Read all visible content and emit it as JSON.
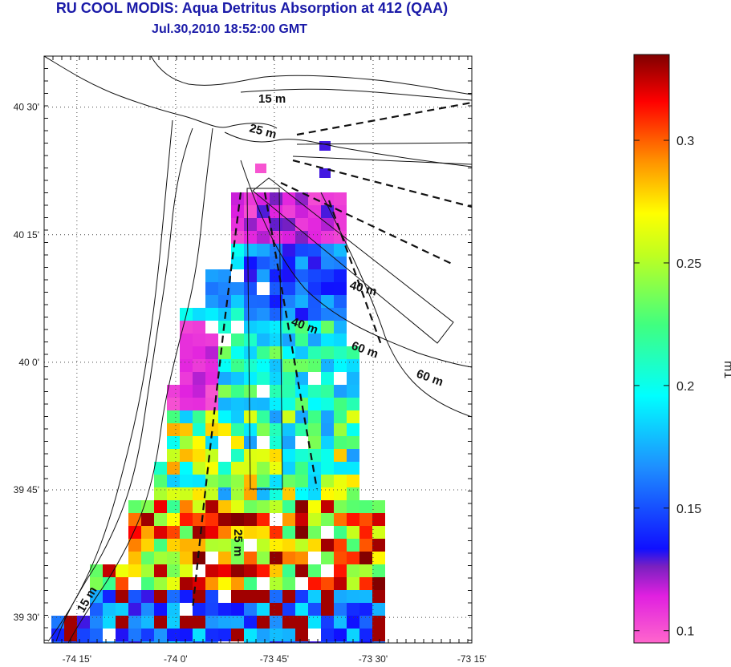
{
  "title": "RU COOL MODIS: Aqua Detritus Absorption at 412 (QAA)",
  "subtitle": "Jul.30,2010 18:52:00 GMT",
  "map": {
    "lon_range": [
      -74.333,
      -73.25
    ],
    "lat_range": [
      39.45,
      40.6
    ],
    "x_ticks": [
      {
        "value": -74.25,
        "label": "-74 15'"
      },
      {
        "value": -74.0,
        "label": "-74 0'"
      },
      {
        "value": -73.75,
        "label": "-73 45'"
      },
      {
        "value": -73.5,
        "label": "-73 30'"
      },
      {
        "value": -73.25,
        "label": "-73 15'"
      }
    ],
    "y_ticks": [
      {
        "value": 40.5,
        "label": "40 30'"
      },
      {
        "value": 40.25,
        "label": "40 15'"
      },
      {
        "value": 40.0,
        "label": "40 0'"
      },
      {
        "value": 39.75,
        "label": "39 45'"
      },
      {
        "value": 39.5,
        "label": "39 30'"
      }
    ],
    "grid": "dotted",
    "depth_labels": [
      "15 m",
      "25 m",
      "40 m",
      "40 m",
      "60 m",
      "60 m",
      "25 m",
      "15 m"
    ]
  },
  "colorbar": {
    "label": "m1",
    "min": 0.095,
    "max": 0.335,
    "ticks": [
      {
        "value": 0.3,
        "label": "0.3"
      },
      {
        "value": 0.25,
        "label": "0.25"
      },
      {
        "value": 0.2,
        "label": "0.2"
      },
      {
        "value": 0.15,
        "label": "0.15"
      },
      {
        "value": 0.1,
        "label": "0.1"
      }
    ],
    "colormap": "magenta-purple-blue-cyan-green-yellow-orange-red-darkred"
  },
  "colors": {
    "title": "#1a1aa8",
    "coast": "#111111"
  }
}
